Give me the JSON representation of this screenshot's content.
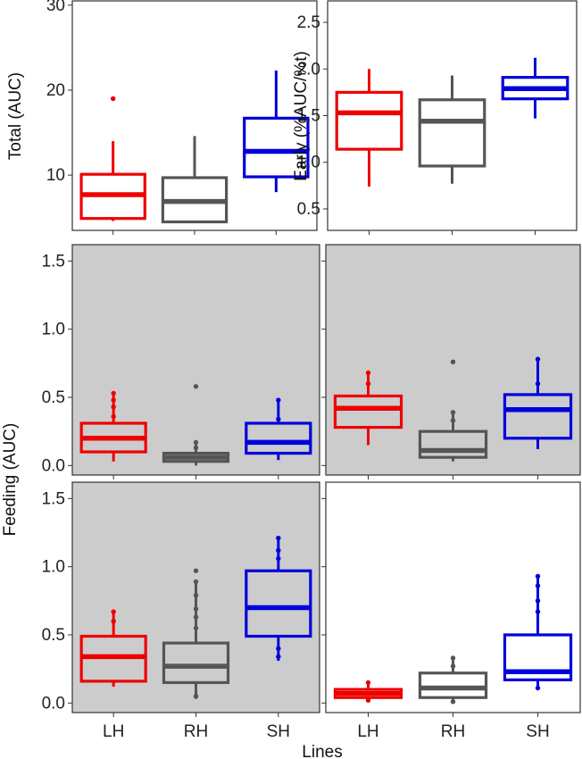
{
  "shared": {
    "categories": [
      "LH",
      "RH",
      "SH"
    ],
    "colors": {
      "LH": "#ee0000",
      "RH": "#555555",
      "SH": "#0000dd"
    },
    "xlabel_bottom": "Lines",
    "ylabel_feeding": "Feeding (AUC)"
  },
  "chart_data": [
    {
      "id": "total",
      "type": "box",
      "ylabel": "Total (AUC)",
      "ylim": [
        3.5,
        30.5
      ],
      "yticks": [
        10,
        20,
        30
      ],
      "yticklabels": [
        "10",
        "20",
        "30"
      ],
      "background": "#ffffff",
      "show_x_labels": false,
      "categories": [
        "LH",
        "RH",
        "SH"
      ],
      "boxes": [
        {
          "category": "LH",
          "whisker_low": 4.6,
          "q1": 4.9,
          "median": 7.7,
          "q3": 10.1,
          "whisker_high": 14.0,
          "outliers": [
            19.0
          ]
        },
        {
          "category": "RH",
          "whisker_low": 4.5,
          "q1": 4.5,
          "median": 6.9,
          "q3": 9.7,
          "whisker_high": 14.6,
          "outliers": []
        },
        {
          "category": "SH",
          "whisker_low": 8.0,
          "q1": 9.8,
          "median": 12.8,
          "q3": 16.7,
          "whisker_high": 22.3,
          "outliers": []
        }
      ]
    },
    {
      "id": "early",
      "type": "box",
      "ylabel": "Early (%AUC/%t)",
      "ylim": [
        0.27,
        2.73
      ],
      "yticks": [
        0.5,
        1.0,
        1.5,
        2.0,
        2.5
      ],
      "yticklabels": [
        "0.5",
        "1.0",
        "1.5",
        "2.0",
        "2.5"
      ],
      "background": "#ffffff",
      "show_x_labels": false,
      "categories": [
        "LH",
        "RH",
        "SH"
      ],
      "boxes": [
        {
          "category": "LH",
          "whisker_low": 0.74,
          "q1": 1.14,
          "median": 1.53,
          "q3": 1.75,
          "whisker_high": 2.0,
          "outliers": []
        },
        {
          "category": "RH",
          "whisker_low": 0.77,
          "q1": 0.96,
          "median": 1.44,
          "q3": 1.67,
          "whisker_high": 1.93,
          "outliers": []
        },
        {
          "category": "SH",
          "whisker_low": 1.47,
          "q1": 1.68,
          "median": 1.79,
          "q3": 1.91,
          "whisker_high": 2.12,
          "outliers": []
        }
      ]
    },
    {
      "id": "feeding-top-left",
      "type": "box",
      "ylim": [
        -0.07,
        1.62
      ],
      "yticks": [
        0.0,
        0.5,
        1.0,
        1.5
      ],
      "yticklabels": [
        "0.0",
        "0.5",
        "1.0",
        "1.5"
      ],
      "background": "#cccccc",
      "show_x_labels": false,
      "categories": [
        "LH",
        "RH",
        "SH"
      ],
      "boxes": [
        {
          "category": "LH",
          "whisker_low": 0.03,
          "q1": 0.1,
          "median": 0.2,
          "q3": 0.31,
          "whisker_high": 0.53,
          "outliers": [
            0.36,
            0.43,
            0.48,
            0.53
          ]
        },
        {
          "category": "RH",
          "whisker_low": 0.0,
          "q1": 0.03,
          "median": 0.06,
          "q3": 0.09,
          "whisker_high": 0.17,
          "outliers": [
            0.13,
            0.17,
            0.58
          ]
        },
        {
          "category": "SH",
          "whisker_low": 0.04,
          "q1": 0.09,
          "median": 0.17,
          "q3": 0.31,
          "whisker_high": 0.48,
          "outliers": [
            0.34,
            0.48
          ]
        }
      ]
    },
    {
      "id": "feeding-top-right",
      "type": "box",
      "ylim": [
        -0.07,
        1.62
      ],
      "yticks": [
        0.0,
        0.5,
        1.0,
        1.5
      ],
      "background": "#cccccc",
      "show_y_labels": false,
      "show_x_labels": false,
      "categories": [
        "LH",
        "RH",
        "SH"
      ],
      "boxes": [
        {
          "category": "LH",
          "whisker_low": 0.15,
          "q1": 0.28,
          "median": 0.42,
          "q3": 0.51,
          "whisker_high": 0.68,
          "outliers": [
            0.6,
            0.68
          ]
        },
        {
          "category": "RH",
          "whisker_low": 0.03,
          "q1": 0.06,
          "median": 0.11,
          "q3": 0.25,
          "whisker_high": 0.39,
          "outliers": [
            0.33,
            0.39,
            0.76
          ]
        },
        {
          "category": "SH",
          "whisker_low": 0.12,
          "q1": 0.2,
          "median": 0.41,
          "q3": 0.52,
          "whisker_high": 0.78,
          "outliers": [
            0.6,
            0.78
          ]
        }
      ]
    },
    {
      "id": "feeding-bottom-left",
      "type": "box",
      "ylim": [
        -0.07,
        1.62
      ],
      "yticks": [
        0.0,
        0.5,
        1.0,
        1.5
      ],
      "yticklabels": [
        "0.0",
        "0.5",
        "1.0",
        "1.5"
      ],
      "background": "#cccccc",
      "show_x_labels": true,
      "categories": [
        "LH",
        "RH",
        "SH"
      ],
      "boxes": [
        {
          "category": "LH",
          "whisker_low": 0.12,
          "q1": 0.16,
          "median": 0.34,
          "q3": 0.49,
          "whisker_high": 0.67,
          "outliers": [
            0.6,
            0.67
          ]
        },
        {
          "category": "RH",
          "whisker_low": 0.03,
          "q1": 0.15,
          "median": 0.27,
          "q3": 0.44,
          "whisker_high": 0.89,
          "outliers": [
            0.05,
            0.55,
            0.63,
            0.69,
            0.79,
            0.89,
            0.97
          ]
        },
        {
          "category": "SH",
          "whisker_low": 0.31,
          "q1": 0.49,
          "median": 0.7,
          "q3": 0.97,
          "whisker_high": 1.21,
          "outliers": [
            0.34,
            0.4,
            1.06,
            1.12,
            1.21
          ]
        }
      ]
    },
    {
      "id": "feeding-bottom-right",
      "type": "box",
      "ylim": [
        -0.07,
        1.62
      ],
      "yticks": [
        0.0,
        0.5,
        1.0,
        1.5
      ],
      "background": "#ffffff",
      "show_y_labels": false,
      "show_x_labels": true,
      "categories": [
        "LH",
        "RH",
        "SH"
      ],
      "boxes": [
        {
          "category": "LH",
          "whisker_low": 0.03,
          "q1": 0.04,
          "median": 0.07,
          "q3": 0.1,
          "whisker_high": 0.15,
          "outliers": [
            0.02,
            0.15
          ]
        },
        {
          "category": "RH",
          "whisker_low": 0.01,
          "q1": 0.04,
          "median": 0.11,
          "q3": 0.22,
          "whisker_high": 0.33,
          "outliers": [
            0.01,
            0.27,
            0.33
          ]
        },
        {
          "category": "SH",
          "whisker_low": 0.11,
          "q1": 0.17,
          "median": 0.23,
          "q3": 0.5,
          "whisker_high": 0.93,
          "outliers": [
            0.11,
            0.67,
            0.75,
            0.86,
            0.93
          ]
        }
      ]
    }
  ]
}
